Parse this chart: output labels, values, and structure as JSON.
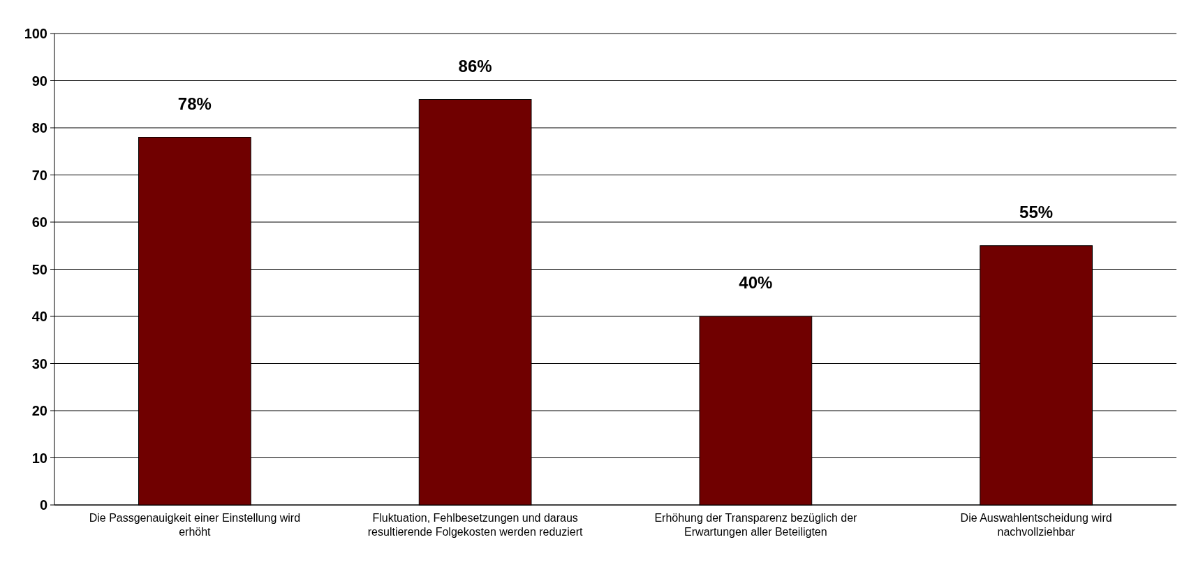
{
  "chart_data": {
    "type": "bar",
    "categories": [
      "Die Passgenauigkeit einer Einstellung wird erhöht",
      "Fluktuation, Fehlbesetzungen und daraus resultierende Folgekosten werden reduziert",
      "Erhöhung der Transparenz bezüglich der Erwartungen aller Beteiligten",
      "Die Auswahlentscheidung wird nachvollziehbar"
    ],
    "values": [
      78,
      86,
      40,
      55
    ],
    "value_labels": [
      "78%",
      "86%",
      "40%",
      "55%"
    ],
    "color": "#700000",
    "ylim": [
      0,
      100
    ],
    "yticks": [
      0,
      10,
      20,
      30,
      40,
      50,
      60,
      70,
      80,
      90,
      100
    ],
    "grid": "y"
  }
}
